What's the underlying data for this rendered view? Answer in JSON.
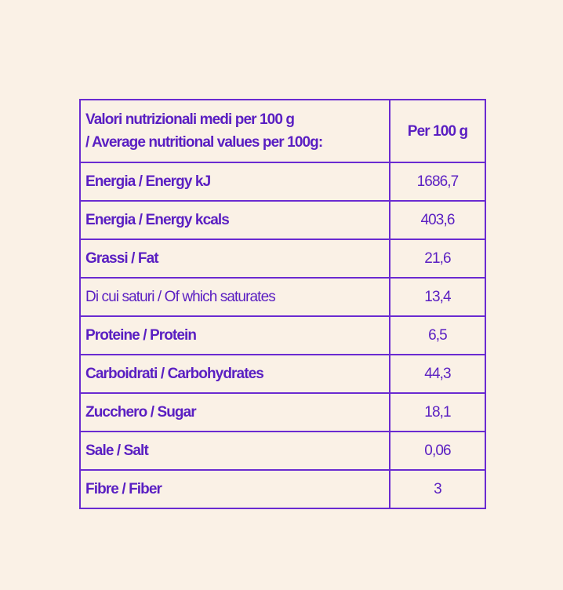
{
  "colors": {
    "background": "#faf1e6",
    "text": "#5a1fc2",
    "border": "#6a2bd1"
  },
  "table": {
    "header": {
      "label_line1": "Valori nutrizionali medi per 100 g",
      "label_line2": "/ Average nutritional values per 100g:",
      "value": "Per 100 g"
    },
    "rows": [
      {
        "label": "Energia / Energy kJ",
        "value": "1686,7",
        "bold": true
      },
      {
        "label": "Energia / Energy kcals",
        "value": "403,6",
        "bold": true
      },
      {
        "label": "Grassi / Fat",
        "value": "21,6",
        "bold": true
      },
      {
        "label": "Di cui saturi / Of which saturates",
        "value": "13,4",
        "bold": false
      },
      {
        "label": "Proteine / Protein",
        "value": "6,5",
        "bold": true
      },
      {
        "label": "Carboidrati / Carbohydrates",
        "value": "44,3",
        "bold": true
      },
      {
        "label": "Zucchero / Sugar",
        "value": "18,1",
        "bold": true
      },
      {
        "label": "Sale / Salt",
        "value": "0,06",
        "bold": true
      },
      {
        "label": "Fibre / Fiber",
        "value": "3",
        "bold": true
      }
    ]
  }
}
